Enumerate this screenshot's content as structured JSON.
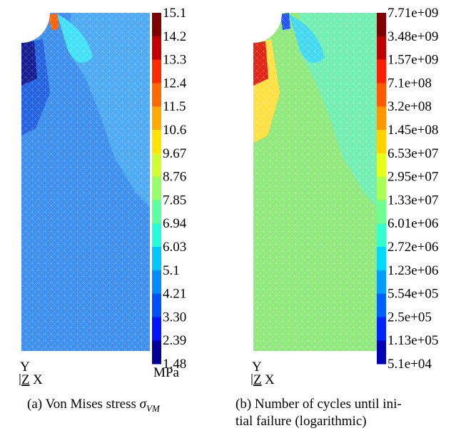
{
  "panels": [
    {
      "colorbar": {
        "labels": [
          "15.1",
          "14.2",
          "13.3",
          "12.4",
          "11.5",
          "10.6",
          "9.67",
          "8.76",
          "7.85",
          "6.94",
          "6.03",
          "5.1",
          "4.21",
          "3.30",
          "2.39",
          "1.48"
        ],
        "unit": "MPa",
        "colors": [
          "#800000",
          "#c40000",
          "#ff2a00",
          "#ff6a00",
          "#ffaa00",
          "#ffe400",
          "#cfff30",
          "#96ff69",
          "#5dffa2",
          "#24ffdb",
          "#00c8ff",
          "#008cff",
          "#0050ff",
          "#0014ff",
          "#000096"
        ]
      },
      "axes": {
        "y": "Y",
        "z": "Z",
        "x": "X"
      },
      "caption": {
        "text": "(a) Von Mises stress ",
        "symbol": "σ",
        "subscript": "VM"
      }
    },
    {
      "colorbar": {
        "labels": [
          "7.71e+09",
          "3.48e+09",
          "1.57e+09",
          "7.1e+08",
          "3.2e+08",
          "1.45e+08",
          "6.53e+07",
          "2.95e+07",
          "1.33e+07",
          "6.01e+06",
          "2.72e+06",
          "1.23e+06",
          "5.54e+05",
          "2.5e+05",
          "1.13e+05",
          "5.1e+04"
        ],
        "colors": [
          "#800000",
          "#c00000",
          "#ff1e00",
          "#ff5a00",
          "#ff9600",
          "#ffd200",
          "#e6ff19",
          "#aaff55",
          "#6eff91",
          "#32ffcd",
          "#00d8ff",
          "#009cff",
          "#0060ff",
          "#0024ff",
          "#0000b4"
        ]
      },
      "axes": {
        "y": "Y",
        "z": "Z",
        "x": "X"
      },
      "caption": {
        "lines": [
          "(b) Number of cycles until ini-",
          "tial failure (logarithmic)"
        ]
      }
    }
  ]
}
